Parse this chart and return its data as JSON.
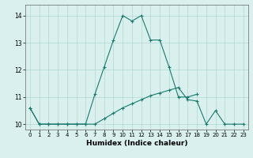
{
  "xlabel": "Humidex (Indice chaleur)",
  "x_values": [
    0,
    1,
    2,
    3,
    4,
    5,
    6,
    7,
    8,
    9,
    10,
    11,
    12,
    13,
    14,
    15,
    16,
    17,
    18,
    19,
    20,
    21,
    22,
    23
  ],
  "line1_y": [
    10.6,
    10.0,
    10.0,
    10.0,
    10.0,
    10.0,
    10.0,
    11.1,
    12.1,
    13.1,
    14.0,
    13.8,
    14.0,
    13.1,
    13.1,
    12.1,
    11.0,
    11.0,
    11.1,
    null,
    null,
    null,
    null,
    null
  ],
  "line2_y": [
    10.6,
    10.0,
    10.0,
    10.0,
    10.0,
    10.0,
    10.0,
    10.0,
    10.2,
    10.4,
    10.6,
    10.75,
    10.9,
    11.05,
    11.15,
    11.25,
    11.35,
    10.9,
    10.85,
    10.0,
    10.5,
    10.0,
    10.0,
    10.0
  ],
  "line_color": "#1a7a6e",
  "bg_color": "#d9f0ef",
  "grid_color": "#b0d8d5",
  "ylim": [
    9.8,
    14.4
  ],
  "xlim": [
    -0.5,
    23.5
  ],
  "yticks": [
    10,
    11,
    12,
    13,
    14
  ],
  "xticks": [
    0,
    1,
    2,
    3,
    4,
    5,
    6,
    7,
    8,
    9,
    10,
    11,
    12,
    13,
    14,
    15,
    16,
    17,
    18,
    19,
    20,
    21,
    22,
    23
  ]
}
